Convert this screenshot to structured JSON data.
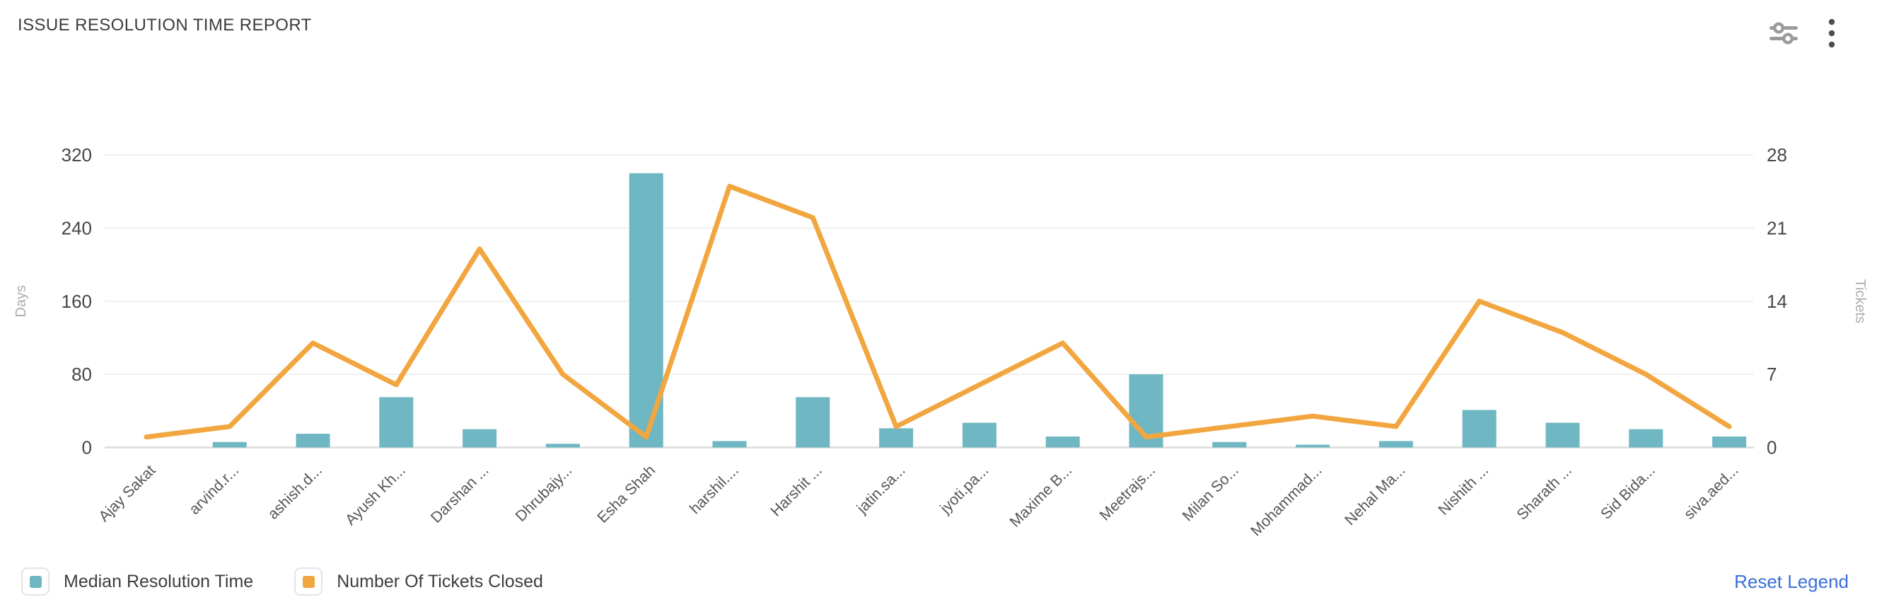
{
  "header": {
    "title": "ISSUE RESOLUTION TIME REPORT",
    "actions": [
      {
        "icon": "filter-sliders-icon"
      },
      {
        "icon": "more-options-icon"
      }
    ]
  },
  "chart_data": {
    "type": "bar+line dual-axis",
    "title": "ISSUE RESOLUTION TIME REPORT",
    "categories": [
      "Ajay Sakat",
      "arvind.r...",
      "ashish.d...",
      "Ayush Kh...",
      "Darshan ...",
      "Dhrubajy...",
      "Esha Shah",
      "harshil....",
      "Harshit ...",
      "jatin.sa...",
      "jyoti.pa...",
      "Maxime B...",
      "Meetrajs...",
      "Milan So...",
      "Mohammad...",
      "Nehal Ma...",
      "Nishith ...",
      "Sharath ...",
      "Sid Bida...",
      "siva.aed..."
    ],
    "series": [
      {
        "name": "Median Resolution Time",
        "type": "bar",
        "axis": "left",
        "color": "#6FB7C2",
        "values": [
          0,
          6,
          15,
          55,
          20,
          4,
          300,
          7,
          55,
          21,
          27,
          12,
          80,
          6,
          3,
          7,
          41,
          27,
          20,
          12
        ]
      },
      {
        "name": "Number Of Tickets Closed",
        "type": "line",
        "axis": "right",
        "color": "#F2A640",
        "values": [
          1,
          2,
          10,
          6,
          19,
          7,
          1,
          25,
          22,
          2,
          6,
          10,
          1,
          2,
          3,
          2,
          14,
          11,
          7,
          2
        ]
      }
    ],
    "left_axis": {
      "label": "Days",
      "ticks": [
        0,
        80,
        160,
        240,
        320
      ],
      "max": 320
    },
    "right_axis": {
      "label": "Tickets",
      "ticks": [
        0,
        7,
        14,
        21,
        28
      ],
      "max": 28
    },
    "grid": true,
    "legend_position": "bottom-left"
  },
  "legend": {
    "items": [
      {
        "label": "Median Resolution Time",
        "color": "#6FB7C2"
      },
      {
        "label": "Number Of Tickets Closed",
        "color": "#F2A640"
      }
    ],
    "reset_label": "Reset Legend"
  },
  "colors": {
    "bar": "#6FB7C2",
    "line": "#F2A640",
    "link": "#3a6fd8",
    "grid": "#ebebeb",
    "axis_baseline": "#e0e0e0",
    "tick_text": "#484848",
    "category_text": "#575757",
    "axis_name_text": "#acacac"
  }
}
